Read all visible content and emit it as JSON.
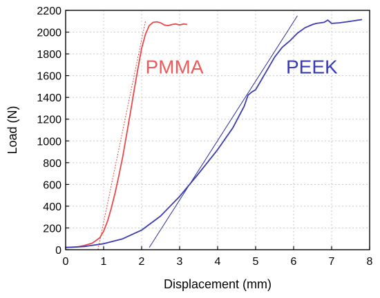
{
  "chart_data": {
    "type": "line",
    "xlabel": "Displacement  (mm)",
    "ylabel": "Load (N)",
    "xlim": [
      0,
      8
    ],
    "ylim": [
      0,
      2200
    ],
    "xticks": [
      0,
      1,
      2,
      3,
      4,
      5,
      6,
      7,
      8
    ],
    "yticks": [
      0,
      200,
      400,
      600,
      800,
      1000,
      1200,
      1400,
      1600,
      1800,
      2000,
      2200
    ],
    "grid": true,
    "annotations": [
      {
        "text": "PMMA",
        "color": "#ee5a5a",
        "x": 2.1,
        "y": 1620
      },
      {
        "text": "PEEK",
        "color": "#3a3ab4",
        "x": 5.8,
        "y": 1620
      }
    ],
    "series": [
      {
        "color": "#e84848",
        "points": [
          [
            0.0,
            20
          ],
          [
            0.3,
            25
          ],
          [
            0.5,
            40
          ],
          [
            0.7,
            60
          ],
          [
            0.9,
            110
          ],
          [
            1.0,
            170
          ],
          [
            1.1,
            260
          ],
          [
            1.2,
            380
          ],
          [
            1.3,
            520
          ],
          [
            1.4,
            680
          ],
          [
            1.5,
            850
          ],
          [
            1.6,
            1050
          ],
          [
            1.7,
            1250
          ],
          [
            1.8,
            1460
          ],
          [
            1.9,
            1660
          ],
          [
            2.0,
            1850
          ],
          [
            2.1,
            1980
          ],
          [
            2.2,
            2060
          ],
          [
            2.3,
            2090
          ],
          [
            2.4,
            2095
          ],
          [
            2.5,
            2085
          ],
          [
            2.6,
            2065
          ],
          [
            2.7,
            2060
          ],
          [
            2.8,
            2070
          ],
          [
            2.9,
            2075
          ],
          [
            3.0,
            2065
          ],
          [
            3.1,
            2075
          ],
          [
            3.2,
            2070
          ]
        ]
      },
      {
        "color": "#3a3ab4",
        "points": [
          [
            0.0,
            20
          ],
          [
            0.5,
            30
          ],
          [
            1.0,
            55
          ],
          [
            1.5,
            100
          ],
          [
            2.0,
            180
          ],
          [
            2.5,
            310
          ],
          [
            3.0,
            490
          ],
          [
            3.5,
            700
          ],
          [
            4.0,
            920
          ],
          [
            4.4,
            1120
          ],
          [
            4.7,
            1320
          ],
          [
            4.8,
            1420
          ],
          [
            4.9,
            1450
          ],
          [
            5.0,
            1470
          ],
          [
            5.1,
            1530
          ],
          [
            5.3,
            1650
          ],
          [
            5.5,
            1770
          ],
          [
            5.7,
            1860
          ],
          [
            5.9,
            1920
          ],
          [
            6.1,
            1990
          ],
          [
            6.3,
            2040
          ],
          [
            6.5,
            2070
          ],
          [
            6.6,
            2080
          ],
          [
            6.8,
            2090
          ],
          [
            6.9,
            2110
          ],
          [
            7.0,
            2080
          ],
          [
            7.2,
            2085
          ],
          [
            7.4,
            2095
          ],
          [
            7.6,
            2105
          ],
          [
            7.8,
            2115
          ]
        ]
      }
    ],
    "tangents": [
      {
        "color": "#e84848",
        "dashed": true,
        "from": [
          0.85,
          0
        ],
        "to": [
          2.1,
          2100
        ]
      },
      {
        "color": "#2a2a9a",
        "dashed": false,
        "from": [
          2.2,
          20
        ],
        "to": [
          6.1,
          2150
        ]
      }
    ]
  }
}
